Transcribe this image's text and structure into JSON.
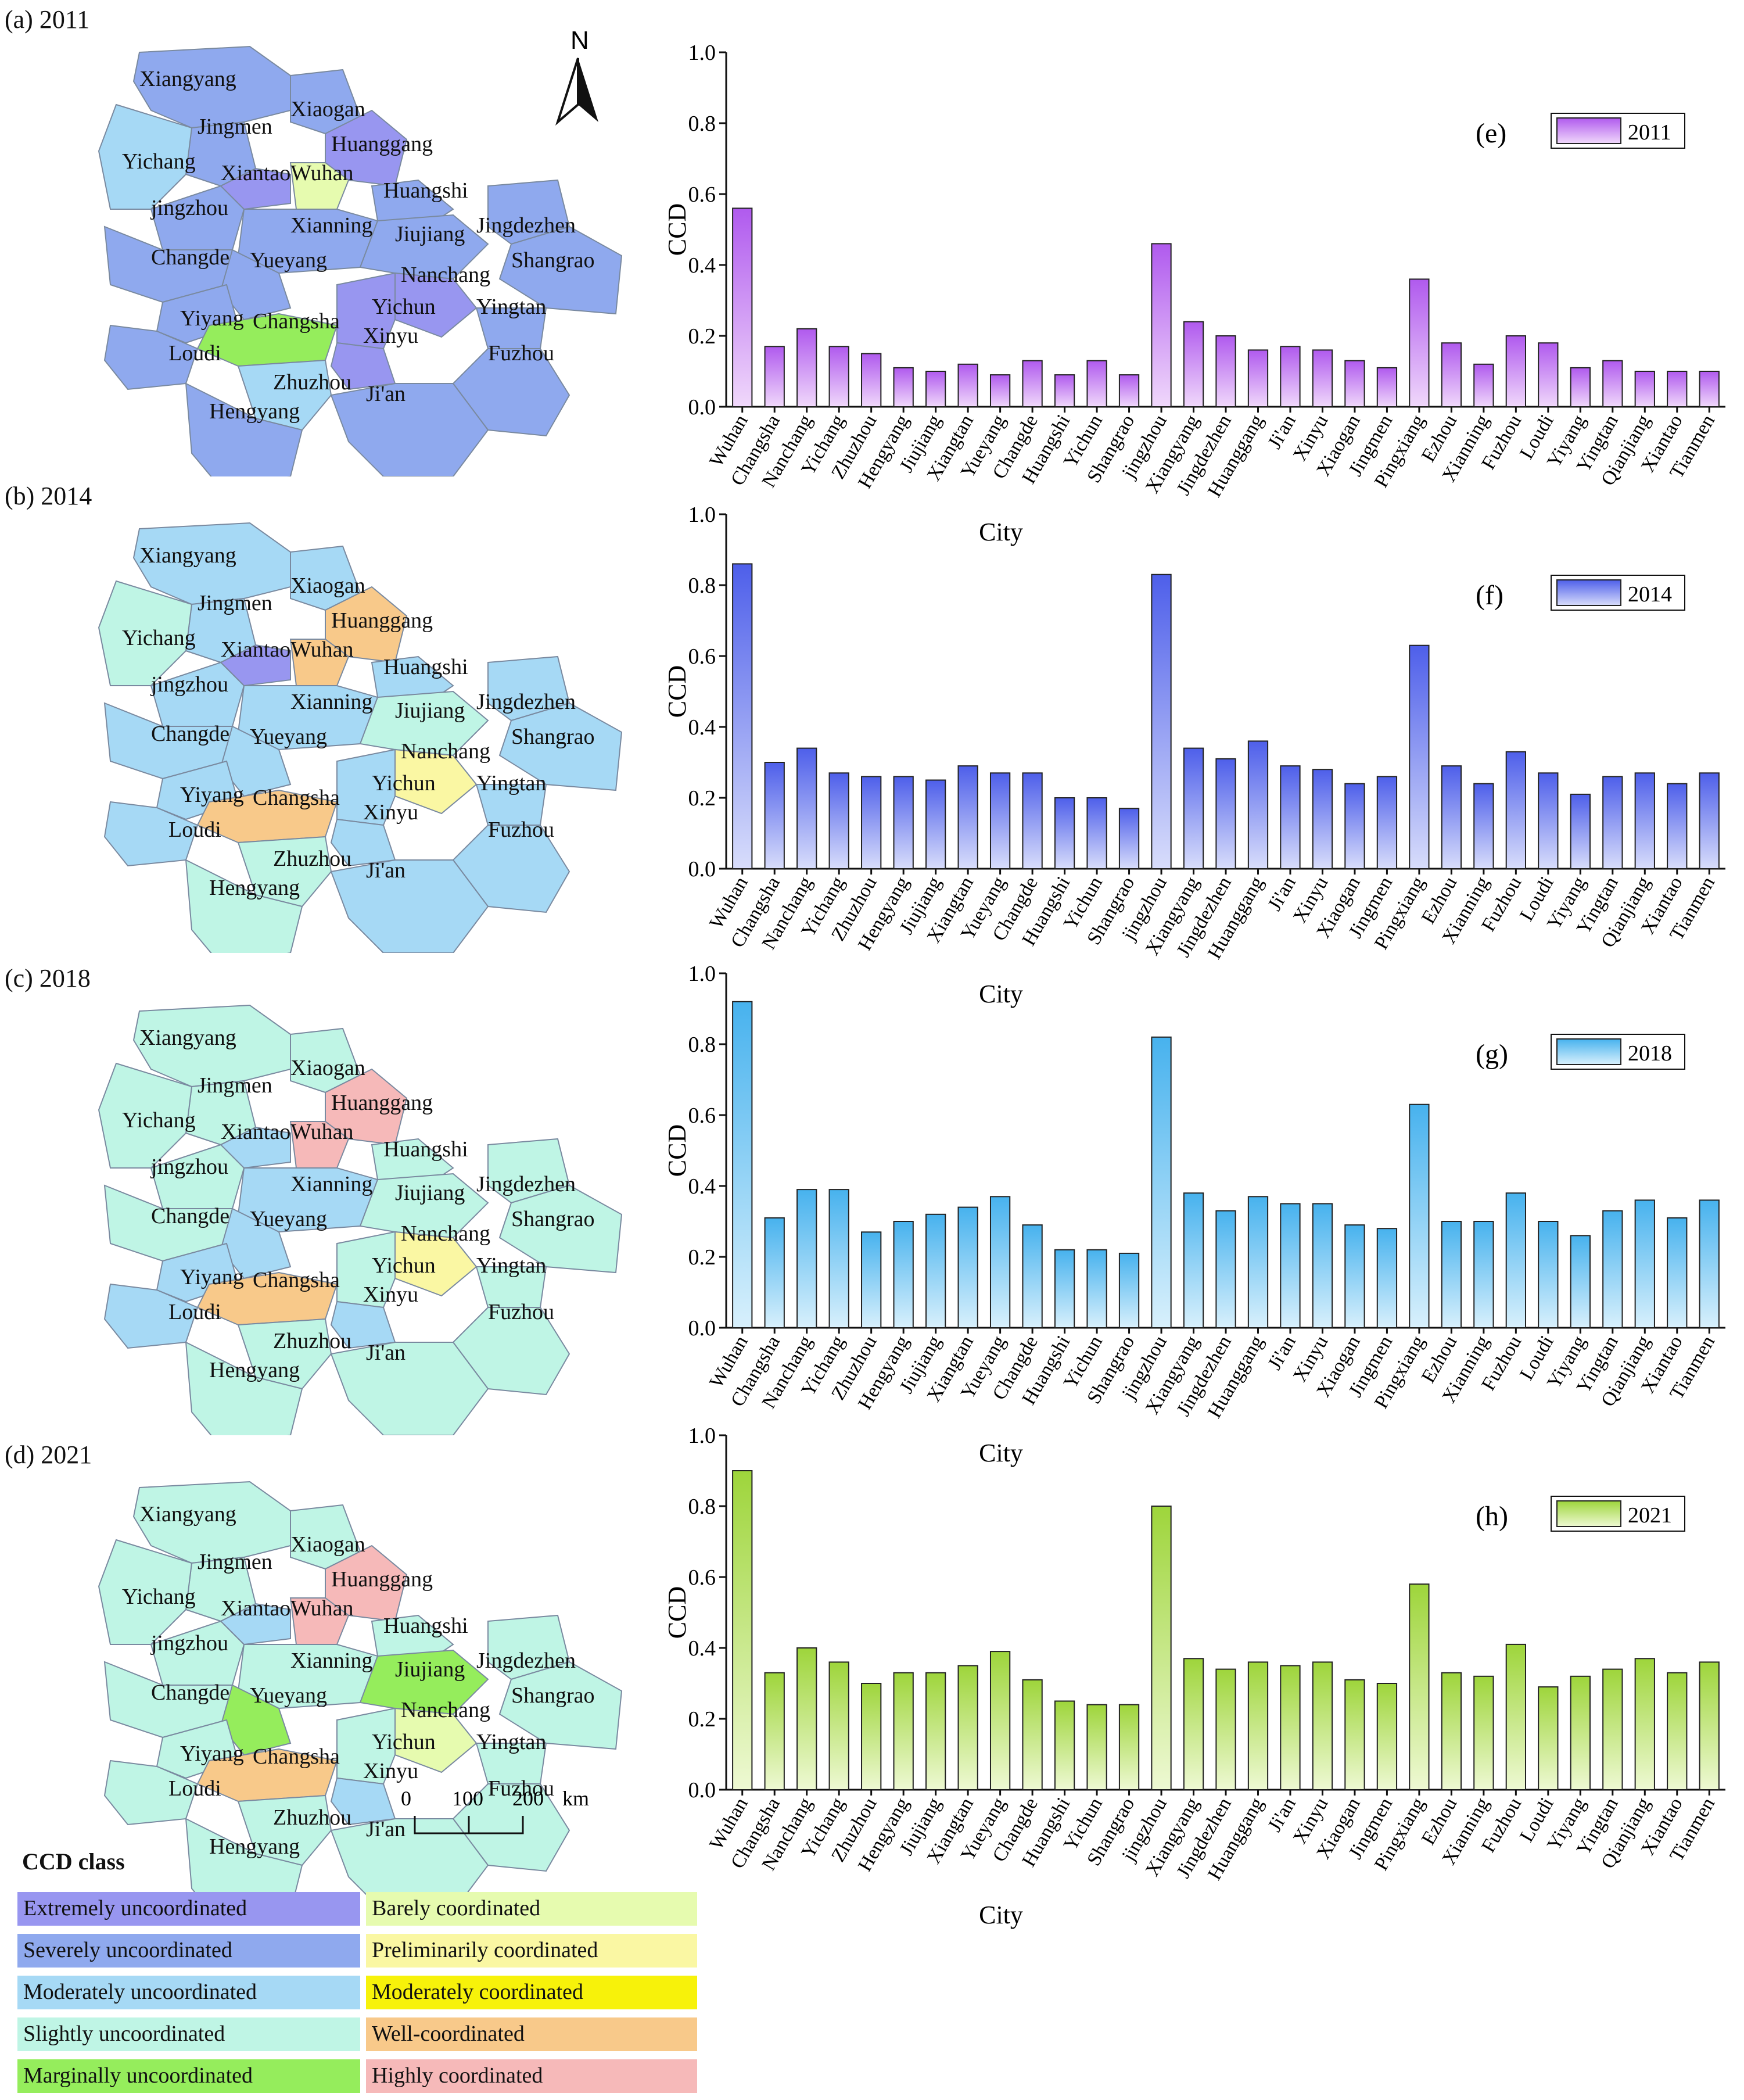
{
  "maps": [
    {
      "title": "(a) 2011",
      "year": "2011",
      "labels": [
        {
          "t": "Xiangyang"
        },
        {
          "t": "Jingmen"
        },
        {
          "t": "Xiaogan"
        },
        {
          "t": "Huanggang"
        },
        {
          "t": "Yichang"
        },
        {
          "t": "XiantaoWuhan"
        },
        {
          "t": "Huangshi"
        },
        {
          "t": "jingzhou"
        },
        {
          "t": "Xianning"
        },
        {
          "t": "Jiujiang"
        },
        {
          "t": "Jingdezhen"
        },
        {
          "t": "Changde"
        },
        {
          "t": "Yueyang"
        },
        {
          "t": "Nanchang"
        },
        {
          "t": "Shangrao"
        },
        {
          "t": "Yichun"
        },
        {
          "t": "Yingtan"
        },
        {
          "t": "Yiyang"
        },
        {
          "t": "Changsha"
        },
        {
          "t": "Xinyu"
        },
        {
          "t": "Loudi"
        },
        {
          "t": "Fuzhou"
        },
        {
          "t": "Zhuzhou"
        },
        {
          "t": "Ji'an"
        },
        {
          "t": "Hengyang"
        }
      ]
    },
    {
      "title": "(b) 2014",
      "year": "2014",
      "labels": [
        {
          "t": "Xiangyang"
        },
        {
          "t": "Jingmen"
        },
        {
          "t": "Xiaogan"
        },
        {
          "t": "Huanggang"
        },
        {
          "t": "Yichang"
        },
        {
          "t": "XiantaoWuhan"
        },
        {
          "t": "Huangshi"
        },
        {
          "t": "jingzhou"
        },
        {
          "t": "Xianning"
        },
        {
          "t": "Jiujiang"
        },
        {
          "t": "Jingdezhen"
        },
        {
          "t": "Changde"
        },
        {
          "t": "Yueyang"
        },
        {
          "t": "Nanchang"
        },
        {
          "t": "Shangrao"
        },
        {
          "t": "Yichun"
        },
        {
          "t": "Yingtan"
        },
        {
          "t": "Yiyang"
        },
        {
          "t": "Changsha"
        },
        {
          "t": "Xinyu"
        },
        {
          "t": "Loudi"
        },
        {
          "t": "Fuzhou"
        },
        {
          "t": "Zhuzhou"
        },
        {
          "t": "Ji'an"
        },
        {
          "t": "Hengyang"
        }
      ]
    },
    {
      "title": "(c) 2018",
      "year": "2018",
      "labels": [
        {
          "t": "Xiangyang"
        },
        {
          "t": "Jingmen"
        },
        {
          "t": "Xiaogan"
        },
        {
          "t": "Huanggang"
        },
        {
          "t": "Yichang"
        },
        {
          "t": "XiantaoWuhan"
        },
        {
          "t": "Huangshi"
        },
        {
          "t": "jingzhou"
        },
        {
          "t": "Xianning"
        },
        {
          "t": "Jiujiang"
        },
        {
          "t": "Jingdezhen"
        },
        {
          "t": "Changde"
        },
        {
          "t": "Yueyang"
        },
        {
          "t": "Nanchang"
        },
        {
          "t": "Shangrao"
        },
        {
          "t": "Yichun"
        },
        {
          "t": "Yingtan"
        },
        {
          "t": "Yiyang"
        },
        {
          "t": "Changsha"
        },
        {
          "t": "Xinyu"
        },
        {
          "t": "Loudi"
        },
        {
          "t": "Fuzhou"
        },
        {
          "t": "Zhuzhou"
        },
        {
          "t": "Ji'an"
        },
        {
          "t": "Hengyang"
        }
      ]
    },
    {
      "title": "(d) 2021",
      "year": "2021",
      "labels": [
        {
          "t": "Xiangyang"
        },
        {
          "t": "Jingmen"
        },
        {
          "t": "Xiaogan"
        },
        {
          "t": "Huanggang"
        },
        {
          "t": "Yichang"
        },
        {
          "t": "XiantaoWuhan"
        },
        {
          "t": "Huangshi"
        },
        {
          "t": "jingzhou"
        },
        {
          "t": "Xianning"
        },
        {
          "t": "Jiujiang"
        },
        {
          "t": "Jingdezhen"
        },
        {
          "t": "Changde"
        },
        {
          "t": "Yueyang"
        },
        {
          "t": "Nanchang"
        },
        {
          "t": "Shangrao"
        },
        {
          "t": "Yichun"
        },
        {
          "t": "Yingtan"
        },
        {
          "t": "Yiyang"
        },
        {
          "t": "Changsha"
        },
        {
          "t": "Xinyu"
        },
        {
          "t": "Loudi"
        },
        {
          "t": "Fuzhou"
        },
        {
          "t": "Zhuzhou"
        },
        {
          "t": "Ji'an"
        },
        {
          "t": "Hengyang"
        }
      ]
    }
  ],
  "map_fills": {
    "2011": {
      "Xiangyang": "severe",
      "Jingmen": "severe",
      "Xiaogan": "severe",
      "Huanggang": "extreme",
      "Yichang": "moderate",
      "Xiantao": "extreme",
      "Wuhan": "barely",
      "Huangshi": "severe",
      "jingzhou": "severe",
      "Xianning": "severe",
      "Jiujiang": "severe",
      "Jingdezhen": "severe",
      "Changde": "severe",
      "Yueyang": "severe",
      "Nanchang": "extreme",
      "Shangrao": "severe",
      "Yichun": "extreme",
      "Yingtan": "severe",
      "Yiyang": "severe",
      "Changsha": "marginal",
      "Xinyu": "extreme",
      "Loudi": "severe",
      "Fuzhou": "severe",
      "Zhuzhou": "moderate",
      "Jian": "severe",
      "Hengyang": "severe"
    },
    "2014": {
      "Xiangyang": "moderate",
      "Jingmen": "moderate",
      "Xiaogan": "moderate",
      "Huanggang": "well",
      "Yichang": "slight",
      "Xiantao": "extreme",
      "Wuhan": "well",
      "Huangshi": "moderate",
      "jingzhou": "moderate",
      "Xianning": "moderate",
      "Jiujiang": "slight",
      "Jingdezhen": "moderate",
      "Changde": "moderate",
      "Yueyang": "moderate",
      "Nanchang": "prelim",
      "Shangrao": "moderate",
      "Yichun": "moderate",
      "Yingtan": "moderate",
      "Yiyang": "moderate",
      "Changsha": "well",
      "Xinyu": "moderate",
      "Loudi": "moderate",
      "Fuzhou": "moderate",
      "Zhuzhou": "slight",
      "Jian": "moderate",
      "Hengyang": "slight"
    },
    "2018": {
      "Xiangyang": "slight",
      "Jingmen": "slight",
      "Xiaogan": "slight",
      "Huanggang": "highly",
      "Yichang": "slight",
      "Xiantao": "moderate",
      "Wuhan": "highly",
      "Huangshi": "slight",
      "jingzhou": "slight",
      "Xianning": "moderate",
      "Jiujiang": "slight",
      "Jingdezhen": "slight",
      "Changde": "slight",
      "Yueyang": "moderate",
      "Nanchang": "prelim",
      "Shangrao": "slight",
      "Yichun": "slight",
      "Yingtan": "slight",
      "Yiyang": "moderate",
      "Changsha": "well",
      "Xinyu": "moderate",
      "Loudi": "moderate",
      "Fuzhou": "slight",
      "Zhuzhou": "slight",
      "Jian": "slight",
      "Hengyang": "slight"
    },
    "2021": {
      "Xiangyang": "slight",
      "Jingmen": "slight",
      "Xiaogan": "slight",
      "Huanggang": "highly",
      "Yichang": "slight",
      "Xiantao": "moderate",
      "Wuhan": "highly",
      "Huangshi": "slight",
      "jingzhou": "slight",
      "Xianning": "slight",
      "Jiujiang": "marginal",
      "Jingdezhen": "slight",
      "Changde": "slight",
      "Yueyang": "marginal",
      "Nanchang": "barely",
      "Shangrao": "slight",
      "Yichun": "slight",
      "Yingtan": "slight",
      "Yiyang": "slight",
      "Changsha": "well",
      "Xinyu": "moderate",
      "Loudi": "slight",
      "Fuzhou": "slight",
      "Zhuzhou": "slight",
      "Jian": "slight",
      "Hengyang": "slight"
    }
  },
  "north_label": "N",
  "scale": {
    "ticks": [
      "0",
      "100",
      "200"
    ],
    "unit": "km"
  },
  "legend": {
    "title": "CCD class",
    "left": [
      {
        "label": "Extremely uncoordinated",
        "color": "#9896F0",
        "key": "extreme"
      },
      {
        "label": "Severely uncoordinated",
        "color": "#8FA9EE",
        "key": "severe"
      },
      {
        "label": "Moderately uncoordinated",
        "color": "#A6D9F5",
        "key": "moderate"
      },
      {
        "label": "Slightly uncoordinated",
        "color": "#BFF5E5",
        "key": "slight"
      },
      {
        "label": "Marginally uncoordinated",
        "color": "#95ED5C",
        "key": "marginal"
      }
    ],
    "right": [
      {
        "label": "Barely coordinated",
        "color": "#E6FBAF",
        "key": "barely"
      },
      {
        "label": "Preliminarily coordinated",
        "color": "#FAF7A3",
        "key": "prelim"
      },
      {
        "label": "Moderately coordinated",
        "color": "#F7F20A",
        "key": "modcoord"
      },
      {
        "label": "Well-coordinated",
        "color": "#F8C98A",
        "key": "well"
      },
      {
        "label": "Highly coordinated",
        "color": "#F6B9B9",
        "key": "highly"
      }
    ]
  },
  "chart_data": [
    {
      "type": "bar",
      "panel": "(e)",
      "legend": "2011",
      "color_top": "#B05AEE",
      "color_bottom": "#F0D8FB",
      "title": "",
      "xlabel": "City",
      "ylabel": "CCD",
      "ylim": [
        0,
        1.0
      ],
      "yticks": [
        "0.0",
        "0.2",
        "0.4",
        "0.6",
        "0.8",
        "1.0"
      ],
      "categories": [
        "Wuhan",
        "Changsha",
        "Nanchang",
        "Yichang",
        "Zhuzhou",
        "Hengyang",
        "Jiujiang",
        "Xiangtan",
        "Yueyang",
        "Changde",
        "Huangshi",
        "Yichun",
        "Shangrao",
        "jingzhou",
        "Xiangyang",
        "Jingdezhen",
        "Huanggang",
        "Ji'an",
        "Xinyu",
        "Xiaogan",
        "Jingmen",
        "Pingxiang",
        "Ezhou",
        "Xianning",
        "Fuzhou",
        "Loudi",
        "Yiyang",
        "Yingtan",
        "Qianjiang",
        "Xiantao",
        "Tianmen"
      ],
      "values": [
        0.56,
        0.17,
        0.22,
        0.17,
        0.15,
        0.11,
        0.1,
        0.12,
        0.09,
        0.13,
        0.09,
        0.13,
        0.09,
        0.46,
        0.24,
        0.2,
        0.16,
        0.17,
        0.16,
        0.13,
        0.11,
        0.36,
        0.18,
        0.12,
        0.2,
        0.18,
        0.11,
        0.13,
        0.1,
        0.1,
        0.1
      ]
    },
    {
      "type": "bar",
      "panel": "(f)",
      "legend": "2014",
      "color_top": "#4E5FEA",
      "color_bottom": "#D8DDFB",
      "title": "",
      "xlabel": "City",
      "ylabel": "CCD",
      "ylim": [
        0,
        1.0
      ],
      "yticks": [
        "0.0",
        "0.2",
        "0.4",
        "0.6",
        "0.8",
        "1.0"
      ],
      "categories": [
        "Wuhan",
        "Changsha",
        "Nanchang",
        "Yichang",
        "Zhuzhou",
        "Hengyang",
        "Jiujiang",
        "Xiangtan",
        "Yueyang",
        "Changde",
        "Huangshi",
        "Yichun",
        "Shangrao",
        "jingzhou",
        "Xiangyang",
        "Jingdezhen",
        "Huanggang",
        "Ji'an",
        "Xinyu",
        "Xiaogan",
        "Jingmen",
        "Pingxiang",
        "Ezhou",
        "Xianning",
        "Fuzhou",
        "Loudi",
        "Yiyang",
        "Yingtan",
        "Qianjiang",
        "Xiantao",
        "Tianmen"
      ],
      "values": [
        0.86,
        0.3,
        0.34,
        0.27,
        0.26,
        0.26,
        0.25,
        0.29,
        0.27,
        0.27,
        0.2,
        0.2,
        0.17,
        0.83,
        0.34,
        0.31,
        0.36,
        0.29,
        0.28,
        0.24,
        0.26,
        0.63,
        0.29,
        0.24,
        0.33,
        0.27,
        0.21,
        0.26,
        0.27,
        0.24,
        0.27
      ]
    },
    {
      "type": "bar",
      "panel": "(g)",
      "legend": "2018",
      "color_top": "#47B2EE",
      "color_bottom": "#D8F0FC",
      "title": "",
      "xlabel": "City",
      "ylabel": "CCD",
      "ylim": [
        0,
        1.0
      ],
      "yticks": [
        "0.0",
        "0.2",
        "0.4",
        "0.6",
        "0.8",
        "1.0"
      ],
      "categories": [
        "Wuhan",
        "Changsha",
        "Nanchang",
        "Yichang",
        "Zhuzhou",
        "Hengyang",
        "Jiujiang",
        "Xiangtan",
        "Yueyang",
        "Changde",
        "Huangshi",
        "Yichun",
        "Shangrao",
        "jingzhou",
        "Xiangyang",
        "Jingdezhen",
        "Huanggang",
        "Ji'an",
        "Xinyu",
        "Xiaogan",
        "Jingmen",
        "Pingxiang",
        "Ezhou",
        "Xianning",
        "Fuzhou",
        "Loudi",
        "Yiyang",
        "Yingtan",
        "Qianjiang",
        "Xiantao",
        "Tianmen"
      ],
      "values": [
        0.92,
        0.31,
        0.39,
        0.39,
        0.27,
        0.3,
        0.32,
        0.34,
        0.37,
        0.29,
        0.22,
        0.22,
        0.21,
        0.82,
        0.38,
        0.33,
        0.37,
        0.35,
        0.35,
        0.29,
        0.28,
        0.63,
        0.3,
        0.3,
        0.38,
        0.3,
        0.26,
        0.33,
        0.36,
        0.31,
        0.36
      ]
    },
    {
      "type": "bar",
      "panel": "(h)",
      "legend": "2021",
      "color_top": "#9ED53B",
      "color_bottom": "#EEF9D3",
      "title": "",
      "xlabel": "City",
      "ylabel": "CCD",
      "ylim": [
        0,
        1.0
      ],
      "yticks": [
        "0.0",
        "0.2",
        "0.4",
        "0.6",
        "0.8",
        "1.0"
      ],
      "categories": [
        "Wuhan",
        "Changsha",
        "Nanchang",
        "Yichang",
        "Zhuzhou",
        "Hengyang",
        "Jiujiang",
        "Xiangtan",
        "Yueyang",
        "Changde",
        "Huangshi",
        "Yichun",
        "Shangrao",
        "jingzhou",
        "Xiangyang",
        "Jingdezhen",
        "Huanggang",
        "Ji'an",
        "Xinyu",
        "Xiaogan",
        "Jingmen",
        "Pingxiang",
        "Ezhou",
        "Xianning",
        "Fuzhou",
        "Loudi",
        "Yiyang",
        "Yingtan",
        "Qianjiang",
        "Xiantao",
        "Tianmen"
      ],
      "values": [
        0.9,
        0.33,
        0.4,
        0.36,
        0.3,
        0.33,
        0.33,
        0.35,
        0.39,
        0.31,
        0.25,
        0.24,
        0.24,
        0.8,
        0.37,
        0.34,
        0.36,
        0.35,
        0.36,
        0.31,
        0.3,
        0.58,
        0.33,
        0.32,
        0.41,
        0.29,
        0.32,
        0.34,
        0.37,
        0.33,
        0.36
      ]
    }
  ]
}
